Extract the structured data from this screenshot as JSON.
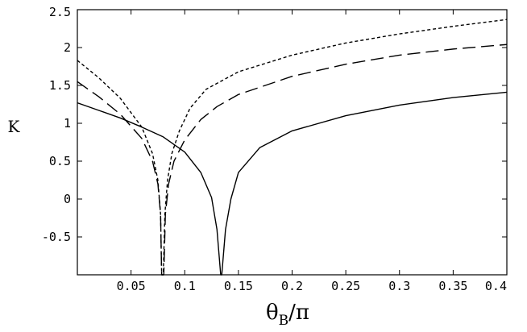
{
  "chart_data": {
    "type": "line",
    "title": "",
    "xlabel": "θ_B/π",
    "xlabel_main": "θ",
    "xlabel_sub": "B",
    "xlabel_tail": "/π",
    "ylabel": "K",
    "xlim": [
      0.0,
      0.4
    ],
    "ylim": [
      -1.0,
      2.5
    ],
    "grid": false,
    "legend": "none",
    "x_ticks": [
      0.05,
      0.1,
      0.15,
      0.2,
      0.25,
      0.3,
      0.35,
      0.4
    ],
    "x_tick_labels": [
      "0.05",
      "0.1",
      "0.15",
      "0.2",
      "0.25",
      "0.3",
      "0.35",
      "0.4"
    ],
    "y_ticks": [
      -0.5,
      0,
      0.5,
      1,
      1.5,
      2,
      2.5
    ],
    "y_tick_labels": [
      "-0.5",
      "0",
      "0.5",
      "1",
      "1.5",
      "2",
      "2.5"
    ],
    "series": [
      {
        "style": "dotted",
        "points": [
          [
            0.0,
            1.83
          ],
          [
            0.02,
            1.6
          ],
          [
            0.04,
            1.33
          ],
          [
            0.06,
            0.95
          ],
          [
            0.07,
            0.6
          ],
          [
            0.075,
            0.25
          ],
          [
            0.0775,
            -0.2
          ],
          [
            0.0785,
            -1.0
          ],
          [
            0.08,
            -1.0
          ],
          [
            0.0815,
            -0.2
          ],
          [
            0.084,
            0.25
          ],
          [
            0.088,
            0.6
          ],
          [
            0.095,
            0.9
          ],
          [
            0.105,
            1.2
          ],
          [
            0.12,
            1.45
          ],
          [
            0.15,
            1.68
          ],
          [
            0.2,
            1.9
          ],
          [
            0.25,
            2.06
          ],
          [
            0.3,
            2.18
          ],
          [
            0.35,
            2.28
          ],
          [
            0.4,
            2.37
          ]
        ]
      },
      {
        "style": "dashed",
        "points": [
          [
            0.0,
            1.55
          ],
          [
            0.02,
            1.35
          ],
          [
            0.04,
            1.12
          ],
          [
            0.06,
            0.8
          ],
          [
            0.07,
            0.5
          ],
          [
            0.075,
            0.2
          ],
          [
            0.0775,
            -0.2
          ],
          [
            0.0785,
            -1.0
          ],
          [
            0.0805,
            -1.0
          ],
          [
            0.082,
            -0.2
          ],
          [
            0.085,
            0.2
          ],
          [
            0.09,
            0.5
          ],
          [
            0.1,
            0.78
          ],
          [
            0.115,
            1.05
          ],
          [
            0.13,
            1.22
          ],
          [
            0.15,
            1.38
          ],
          [
            0.2,
            1.62
          ],
          [
            0.25,
            1.78
          ],
          [
            0.3,
            1.9
          ],
          [
            0.35,
            1.98
          ],
          [
            0.4,
            2.04
          ]
        ]
      },
      {
        "style": "solid",
        "points": [
          [
            0.0,
            1.27
          ],
          [
            0.02,
            1.17
          ],
          [
            0.04,
            1.07
          ],
          [
            0.06,
            0.95
          ],
          [
            0.08,
            0.82
          ],
          [
            0.1,
            0.62
          ],
          [
            0.115,
            0.35
          ],
          [
            0.125,
            0.02
          ],
          [
            0.13,
            -0.4
          ],
          [
            0.1335,
            -1.0
          ],
          [
            0.1345,
            -1.0
          ],
          [
            0.138,
            -0.4
          ],
          [
            0.143,
            0.0
          ],
          [
            0.15,
            0.35
          ],
          [
            0.17,
            0.68
          ],
          [
            0.2,
            0.9
          ],
          [
            0.25,
            1.1
          ],
          [
            0.3,
            1.24
          ],
          [
            0.35,
            1.34
          ],
          [
            0.4,
            1.41
          ]
        ]
      }
    ]
  }
}
